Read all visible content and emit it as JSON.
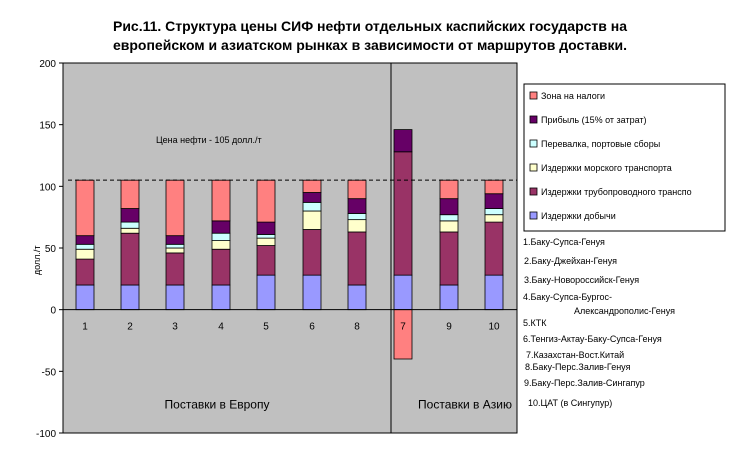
{
  "title_line1": "Рис.11. Структура цены СИФ нефти отдельных каспийских государств на",
  "title_line2": "европейском и азиатском рынках в зависимости от маршрутов доставки.",
  "colors": {
    "plot_bg": "#c0c0c0",
    "axis": "#000000",
    "page_bg": "#ffffff"
  },
  "chart_data": {
    "type": "bar",
    "stacked": true,
    "ylabel": "долл./т",
    "ylim": [
      -100,
      200
    ],
    "yticks": [
      -100,
      -50,
      0,
      50,
      100,
      150,
      200
    ],
    "grid": false,
    "legend_position": "right",
    "categories": [
      "1",
      "2",
      "3",
      "4",
      "5",
      "6",
      "8",
      "7",
      "9",
      "10"
    ],
    "series": [
      {
        "name": "Издержки добычи",
        "color": "#9999ff",
        "values": [
          20,
          20,
          20,
          20,
          28,
          28,
          20,
          28,
          20,
          28
        ]
      },
      {
        "name": "Издержки  трубопроводного транспо",
        "color": "#993366",
        "values": [
          21,
          42,
          26,
          29,
          24,
          37,
          43,
          100,
          43,
          43
        ]
      },
      {
        "name": "Издержки морского транспорта",
        "color": "#ffffcc",
        "values": [
          8,
          4,
          4,
          7,
          6,
          15,
          10,
          0,
          9,
          6
        ]
      },
      {
        "name": "Перевалка, портовые сборы",
        "color": "#ccffff",
        "values": [
          4,
          5,
          3,
          6,
          3,
          7,
          5,
          0,
          5,
          5
        ]
      },
      {
        "name": "Прибыль (15% от затрат)",
        "color": "#660066",
        "values": [
          7,
          11,
          7,
          10,
          10,
          8,
          12,
          18,
          13,
          12
        ]
      },
      {
        "name": "Зона на налоги",
        "color": "#ff8080",
        "values": [
          45,
          23,
          45,
          33,
          34,
          10,
          15,
          -40,
          15,
          11
        ]
      }
    ],
    "reference_line": {
      "value": 105,
      "label": "Цена нефти - 105 долл./т"
    },
    "regions": [
      {
        "label": "Поставки в Европу",
        "categories": [
          "1",
          "2",
          "3",
          "4",
          "5",
          "6",
          "8"
        ]
      },
      {
        "label": "Поставки в Азию",
        "categories": [
          "7",
          "9",
          "10"
        ]
      }
    ],
    "route_notes": [
      "1.Баку-Супса-Генуя",
      "2.Баку-Джейхан-Генуя",
      "3.Баку-Новороссийск-Генуя",
      "4.Баку-Супса-Бургос-",
      "Александрополис-Генуя",
      "5.КТК",
      "6.Тенгиз-Актау-Баку-Супса-Генуя",
      "7.Казахстан-Вост.Китай",
      "8.Баку-Перс.Залив-Генуя",
      "9.Баку-Перс.Залив-Сингапур",
      "10.ЦАТ (в Сингупур)"
    ]
  }
}
